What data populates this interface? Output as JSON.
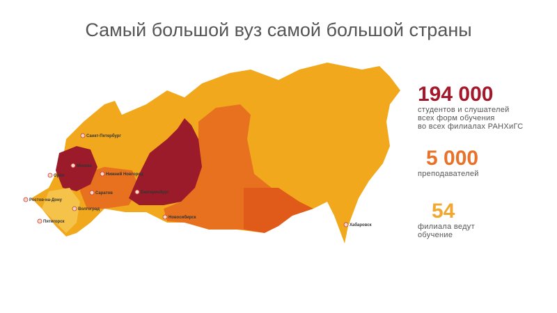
{
  "title": "Самый большой вуз самой большой страны",
  "stats": [
    {
      "value": "194 000",
      "color": "#a3182a",
      "lines": [
        "студентов и слушателей",
        "всех форм обучения",
        "во всех филиалах РАНХиГС"
      ]
    },
    {
      "value": "5 000",
      "color": "#e8722a",
      "lines": [
        "преподавателей"
      ]
    },
    {
      "value": "54",
      "color": "#f0a830",
      "lines": [
        "филиала ведут",
        "обучение"
      ]
    }
  ],
  "map": {
    "cities": [
      "Санкт-Петербург",
      "Москва",
      "Орёл",
      "Нижний Новгород",
      "Саратов",
      "Екатеринбург",
      "Ростов-на-Дону",
      "Волгоград",
      "Пятигорск",
      "Новосибирск",
      "Хабаровск"
    ]
  }
}
